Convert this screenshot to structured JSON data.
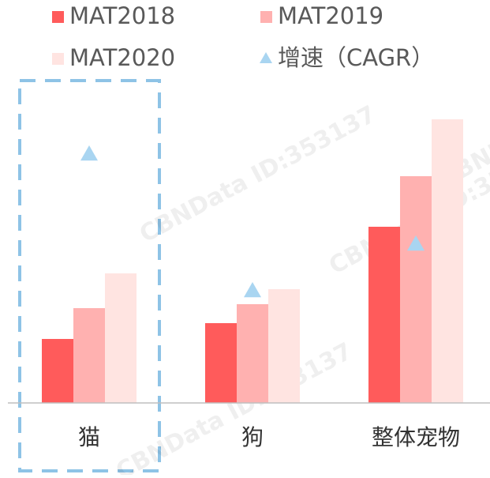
{
  "chart_data": {
    "type": "bar",
    "categories": [
      "猫",
      "狗",
      "整体宠物"
    ],
    "series": [
      {
        "name": "MAT2018",
        "color": "#ff5b5b",
        "values": [
          81,
          101,
          223
        ]
      },
      {
        "name": "MAT2019",
        "color": "#ffb1b0",
        "values": [
          120,
          125,
          287
        ]
      },
      {
        "name": "MAT2020",
        "color": "#ffe4e1",
        "values": [
          164,
          144,
          359
        ]
      },
      {
        "name": "增速（CAGR）",
        "color": "#a9d5f1",
        "type": "scatter",
        "axis": "y2",
        "values": [
          315,
          142,
          201
        ]
      }
    ],
    "ylim": [
      0,
      400
    ],
    "y2lim": [
      0,
      400
    ],
    "watermark": "CBNData ID:353137"
  }
}
